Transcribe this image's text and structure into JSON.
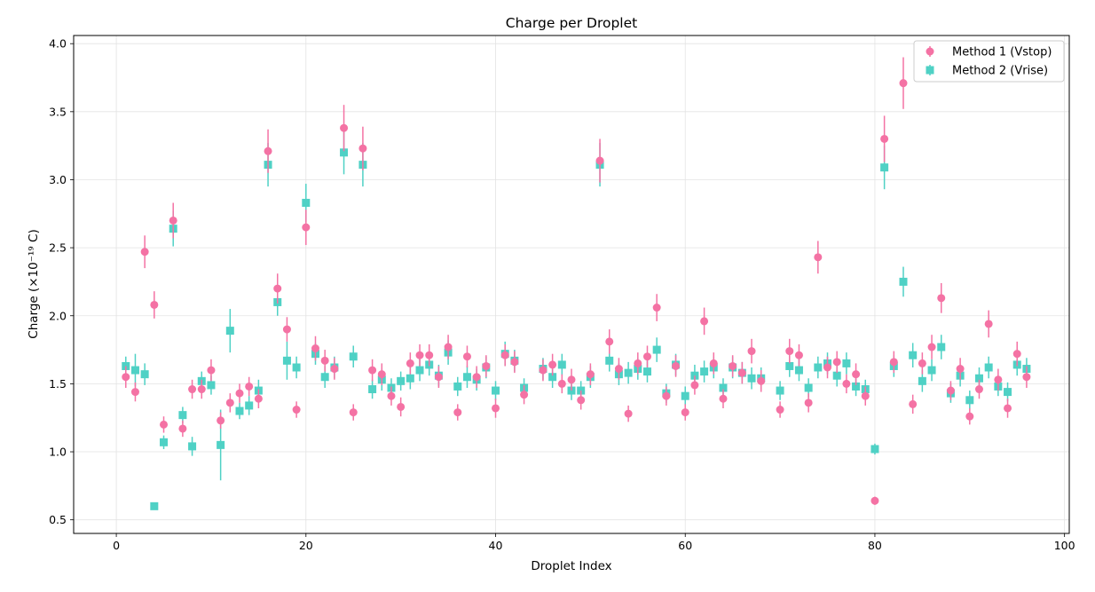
{
  "chart_data": {
    "type": "scatter",
    "title": "Charge per Droplet",
    "xlabel": "Droplet Index",
    "ylabel": "Charge (×10⁻¹⁹ C)",
    "xlim": [
      -4.5,
      100.5
    ],
    "ylim": [
      0.4,
      4.06
    ],
    "xticks": [
      0,
      20,
      40,
      60,
      80,
      100
    ],
    "yticks": [
      "0.5",
      "1.0",
      "1.5",
      "2.0",
      "2.5",
      "3.0",
      "3.5",
      "4.0"
    ],
    "grid": true,
    "legend_position": "top-right",
    "series": [
      {
        "name": "Method 1 (Vstop)",
        "marker": "circle",
        "color": "#f472a4",
        "errorbar_color": "#f472a4",
        "x": [
          1,
          2,
          3,
          4,
          5,
          6,
          7,
          8,
          9,
          10,
          11,
          12,
          13,
          14,
          15,
          16,
          17,
          18,
          19,
          20,
          21,
          22,
          23,
          24,
          25,
          26,
          27,
          28,
          29,
          30,
          31,
          32,
          33,
          34,
          35,
          36,
          37,
          38,
          39,
          40,
          41,
          42,
          43,
          45,
          46,
          47,
          48,
          49,
          50,
          51,
          52,
          53,
          54,
          55,
          56,
          57,
          58,
          59,
          60,
          61,
          62,
          63,
          64,
          65,
          66,
          67,
          68,
          70,
          71,
          72,
          73,
          74,
          75,
          76,
          77,
          78,
          79,
          80,
          81,
          82,
          83,
          84,
          85,
          86,
          87,
          88,
          89,
          90,
          91,
          92,
          93,
          94,
          95,
          96
        ],
        "y": [
          1.55,
          1.44,
          2.47,
          2.08,
          1.2,
          2.7,
          1.17,
          1.46,
          1.46,
          1.6,
          1.23,
          1.36,
          1.43,
          1.48,
          1.39,
          3.21,
          2.2,
          1.9,
          1.31,
          2.65,
          1.76,
          1.67,
          1.61,
          3.38,
          1.29,
          3.23,
          1.6,
          1.57,
          1.41,
          1.33,
          1.65,
          1.71,
          1.71,
          1.55,
          1.77,
          1.29,
          1.7,
          1.55,
          1.63,
          1.32,
          1.71,
          1.66,
          1.42,
          1.6,
          1.64,
          1.5,
          1.53,
          1.38,
          1.57,
          3.14,
          1.81,
          1.61,
          1.28,
          1.65,
          1.7,
          2.06,
          1.41,
          1.63,
          1.29,
          1.49,
          1.96,
          1.65,
          1.39,
          1.63,
          1.58,
          1.74,
          1.52,
          1.31,
          1.74,
          1.71,
          1.36,
          2.43,
          1.62,
          1.66,
          1.5,
          1.57,
          1.41,
          0.64,
          3.3,
          1.66,
          3.71,
          1.35,
          1.65,
          1.77,
          2.13,
          1.45,
          1.61,
          1.26,
          1.46,
          1.94,
          1.53,
          1.32,
          1.72,
          1.55
        ],
        "err": [
          0.08,
          0.07,
          0.12,
          0.1,
          0.06,
          0.13,
          0.06,
          0.07,
          0.07,
          0.08,
          0.06,
          0.07,
          0.07,
          0.07,
          0.07,
          0.16,
          0.11,
          0.09,
          0.06,
          0.13,
          0.09,
          0.08,
          0.08,
          0.17,
          0.06,
          0.16,
          0.08,
          0.08,
          0.07,
          0.07,
          0.08,
          0.08,
          0.08,
          0.08,
          0.09,
          0.06,
          0.08,
          0.08,
          0.08,
          0.07,
          0.08,
          0.08,
          0.07,
          0.08,
          0.08,
          0.07,
          0.08,
          0.07,
          0.08,
          0.16,
          0.09,
          0.08,
          0.06,
          0.08,
          0.08,
          0.1,
          0.07,
          0.08,
          0.06,
          0.07,
          0.1,
          0.08,
          0.07,
          0.08,
          0.08,
          0.09,
          0.08,
          0.06,
          0.09,
          0.08,
          0.07,
          0.12,
          0.08,
          0.08,
          0.07,
          0.08,
          0.07,
          0.03,
          0.17,
          0.08,
          0.19,
          0.07,
          0.08,
          0.09,
          0.11,
          0.07,
          0.08,
          0.06,
          0.07,
          0.1,
          0.08,
          0.07,
          0.09,
          0.08
        ]
      },
      {
        "name": "Method 2 (Vrise)",
        "marker": "square",
        "color": "#4fd1c5",
        "errorbar_color": "#4fd1c5",
        "x": [
          1,
          2,
          3,
          4,
          5,
          6,
          7,
          8,
          9,
          10,
          11,
          12,
          13,
          14,
          15,
          16,
          17,
          18,
          19,
          20,
          21,
          22,
          23,
          24,
          25,
          26,
          27,
          28,
          29,
          30,
          31,
          32,
          33,
          34,
          35,
          36,
          37,
          38,
          39,
          40,
          41,
          42,
          43,
          45,
          46,
          47,
          48,
          49,
          50,
          51,
          52,
          53,
          54,
          55,
          56,
          57,
          58,
          59,
          60,
          61,
          62,
          63,
          64,
          65,
          66,
          67,
          68,
          70,
          71,
          72,
          73,
          74,
          75,
          76,
          77,
          78,
          79,
          80,
          81,
          82,
          83,
          84,
          85,
          86,
          87,
          88,
          89,
          90,
          91,
          92,
          93,
          94,
          95,
          96
        ],
        "y": [
          1.63,
          1.6,
          1.57,
          0.6,
          1.07,
          2.64,
          1.27,
          1.04,
          1.52,
          1.49,
          1.05,
          1.89,
          1.3,
          1.34,
          1.45,
          3.11,
          2.1,
          1.67,
          1.62,
          2.83,
          1.72,
          1.55,
          1.62,
          3.2,
          1.7,
          3.11,
          1.46,
          1.53,
          1.47,
          1.52,
          1.54,
          1.6,
          1.64,
          1.56,
          1.73,
          1.48,
          1.55,
          1.53,
          1.62,
          1.45,
          1.72,
          1.67,
          1.47,
          1.61,
          1.55,
          1.64,
          1.45,
          1.45,
          1.55,
          3.11,
          1.67,
          1.57,
          1.58,
          1.61,
          1.59,
          1.75,
          1.43,
          1.64,
          1.41,
          1.56,
          1.59,
          1.62,
          1.47,
          1.62,
          1.58,
          1.54,
          1.54,
          1.45,
          1.63,
          1.6,
          1.47,
          1.62,
          1.65,
          1.56,
          1.65,
          1.48,
          1.46,
          1.02,
          3.09,
          1.63,
          2.25,
          1.71,
          1.52,
          1.6,
          1.77,
          1.43,
          1.56,
          1.38,
          1.54,
          1.62,
          1.48,
          1.44,
          1.64,
          1.61
        ],
        "err": [
          0.07,
          0.12,
          0.08,
          0.02,
          0.05,
          0.13,
          0.06,
          0.07,
          0.07,
          0.07,
          0.26,
          0.16,
          0.06,
          0.07,
          0.08,
          0.16,
          0.1,
          0.14,
          0.08,
          0.14,
          0.08,
          0.08,
          0.08,
          0.16,
          0.08,
          0.16,
          0.07,
          0.08,
          0.07,
          0.07,
          0.08,
          0.08,
          0.08,
          0.08,
          0.09,
          0.07,
          0.08,
          0.08,
          0.08,
          0.07,
          0.09,
          0.08,
          0.07,
          0.08,
          0.08,
          0.08,
          0.07,
          0.07,
          0.08,
          0.16,
          0.08,
          0.08,
          0.08,
          0.08,
          0.08,
          0.09,
          0.07,
          0.08,
          0.07,
          0.08,
          0.08,
          0.08,
          0.07,
          0.08,
          0.08,
          0.08,
          0.08,
          0.07,
          0.08,
          0.08,
          0.07,
          0.08,
          0.08,
          0.08,
          0.08,
          0.07,
          0.07,
          0.04,
          0.16,
          0.08,
          0.11,
          0.09,
          0.08,
          0.08,
          0.09,
          0.07,
          0.08,
          0.07,
          0.08,
          0.08,
          0.07,
          0.07,
          0.08,
          0.08
        ]
      }
    ]
  }
}
